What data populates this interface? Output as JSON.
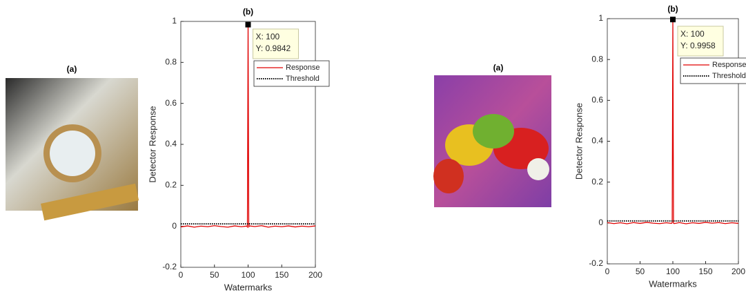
{
  "images": [
    {
      "title": "(a)"
    },
    {
      "title": "(a)"
    }
  ],
  "chart_data": [
    {
      "type": "line",
      "title": "(b)",
      "xlabel": "Watermarks",
      "ylabel": "Detector Response",
      "xlim": [
        0,
        200
      ],
      "xticks": [
        0,
        50,
        100,
        150,
        200
      ],
      "ylim": [
        -0.2,
        1
      ],
      "yticks": [
        -0.2,
        0,
        0.2,
        0.4,
        0.6,
        0.8,
        1
      ],
      "series": [
        {
          "name": "Response",
          "color": "#e00000",
          "dash": "solid",
          "x": [
            0,
            10,
            20,
            30,
            40,
            50,
            60,
            70,
            80,
            90,
            98,
            99,
            100,
            101,
            102,
            110,
            120,
            130,
            140,
            150,
            160,
            170,
            180,
            190,
            200
          ],
          "values": [
            -0.003,
            0.002,
            -0.004,
            0.001,
            -0.002,
            0.003,
            -0.001,
            -0.004,
            0.002,
            -0.002,
            0.001,
            -0.003,
            0.9842,
            -0.002,
            0.002,
            -0.001,
            0.003,
            -0.004,
            0.001,
            -0.002,
            0.002,
            -0.003,
            0.001,
            -0.002,
            0.002
          ]
        },
        {
          "name": "Threshold",
          "color": "#000000",
          "dash": "dotted",
          "x": [
            0,
            200
          ],
          "values": [
            0.012,
            0.012
          ]
        }
      ],
      "annotation": {
        "x": 100,
        "y": 0.9842,
        "labels": [
          "X: 100",
          "Y: 0.9842"
        ]
      }
    },
    {
      "type": "line",
      "title": "(b)",
      "xlabel": "Watermarks",
      "ylabel": "Detector Response",
      "xlim": [
        0,
        200
      ],
      "xticks": [
        0,
        50,
        100,
        150,
        200
      ],
      "ylim": [
        -0.2,
        1
      ],
      "yticks": [
        -0.2,
        0,
        0.2,
        0.4,
        0.6,
        0.8,
        1
      ],
      "series": [
        {
          "name": "Response",
          "color": "#e00000",
          "dash": "solid",
          "x": [
            0,
            10,
            20,
            30,
            40,
            50,
            60,
            70,
            80,
            90,
            98,
            99,
            100,
            101,
            102,
            110,
            120,
            130,
            140,
            150,
            160,
            170,
            180,
            190,
            200
          ],
          "values": [
            0.002,
            -0.003,
            0.001,
            -0.004,
            0.002,
            -0.002,
            0.003,
            -0.001,
            -0.003,
            0.001,
            -0.002,
            0.002,
            0.9958,
            -0.001,
            -0.003,
            0.002,
            -0.004,
            0.001,
            -0.002,
            0.003,
            -0.001,
            0.002,
            -0.003,
            0.001,
            -0.002
          ]
        },
        {
          "name": "Threshold",
          "color": "#000000",
          "dash": "dotted",
          "x": [
            0,
            200
          ],
          "values": [
            0.01,
            0.01
          ]
        }
      ],
      "annotation": {
        "x": 100,
        "y": 0.9958,
        "labels": [
          "X: 100",
          "Y: 0.9958"
        ]
      }
    }
  ]
}
